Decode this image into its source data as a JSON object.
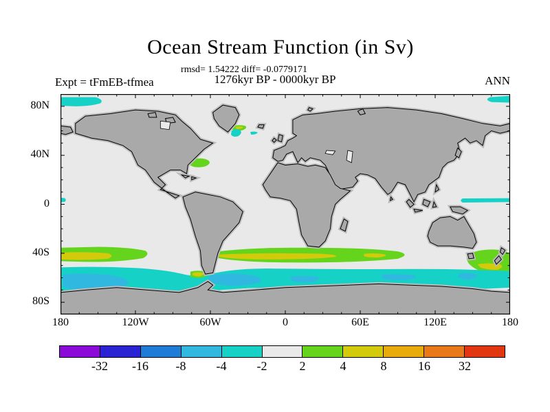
{
  "header": {
    "title": "Ocean Stream Function (in Sv)",
    "stats_line": "rmsd= 1.54222 diff= -0.0779171",
    "period_line": "1276kyr BP - 0000kyr BP",
    "expt_label": "Expt = tFmEB-tfmea",
    "season_label": "ANN"
  },
  "map": {
    "ocean_color": "#e9e9e9",
    "land_color": "#a9a9a9",
    "land_halo_color": "#bcbcbc",
    "coast_color": "#000000"
  },
  "chart_data": {
    "type": "heatmap",
    "title": "Ocean Stream Function (in Sv)",
    "subtitle": "1276kyr BP - 0000kyr BP",
    "experiment": "tFmEB-tfmea",
    "season": "ANN",
    "rmsd": 1.54222,
    "diff": -0.0779171,
    "units": "Sv",
    "projection": "equirectangular",
    "lon_range": [
      -180,
      180
    ],
    "lat_range": [
      -90,
      90
    ],
    "grid": false,
    "x_axis": {
      "minor_step": 15,
      "major_step": 60,
      "ticks": [
        {
          "lon": -180,
          "label": "180"
        },
        {
          "lon": -120,
          "label": "120W"
        },
        {
          "lon": -60,
          "label": "60W"
        },
        {
          "lon": 0,
          "label": "0"
        },
        {
          "lon": 60,
          "label": "60E"
        },
        {
          "lon": 120,
          "label": "120E"
        },
        {
          "lon": 180,
          "label": "180"
        }
      ]
    },
    "y_axis": {
      "minor_step": 10,
      "major_step": 40,
      "ticks": [
        {
          "lat": 80,
          "label": "80N"
        },
        {
          "lat": 40,
          "label": "40N"
        },
        {
          "lat": 0,
          "label": "0"
        },
        {
          "lat": -40,
          "label": "40S"
        },
        {
          "lat": -80,
          "label": "80S"
        }
      ]
    },
    "colorbar": {
      "position": "bottom",
      "levels": [
        "<-32",
        "-32..-16",
        "-16..-8",
        "-8..-4",
        "-4..-2",
        "-2..2",
        "2..4",
        "4..8",
        "8..16",
        "16..32",
        ">32"
      ],
      "colors": [
        "#8b0ad8",
        "#2a23d3",
        "#1f7bd8",
        "#30b8e0",
        "#16d2c6",
        "#e9e9e9",
        "#65d41d",
        "#d3ca0c",
        "#e9aa0c",
        "#e87818",
        "#e1360f"
      ],
      "boundary_labels": [
        "-32",
        "-16",
        "-8",
        "-4",
        "-2",
        "2",
        "4",
        "8",
        "16",
        "32"
      ]
    },
    "anomalies": [
      {
        "region": "Arctic, Pacific sector west",
        "lat": "79N..88N",
        "lon": "180W..147W",
        "level": "-4..-2"
      },
      {
        "region": "Arctic, Pacific sector east edge",
        "lat": "80N..89N",
        "lon": "164E..180E",
        "level": "-4..-2"
      },
      {
        "region": "North Atlantic south of Greenland",
        "lat": "55N..60N",
        "lon": "43W..29W",
        "level": "-4..-2"
      },
      {
        "region": "North Atlantic subpolar patch",
        "lat": "61N..64N",
        "lon": "43W..33W",
        "level": "4..8 core in 2..4"
      },
      {
        "region": "Gulf Stream off US East Coast",
        "lat": "30N..37N",
        "lon": "77W..61W",
        "level": "2..4"
      },
      {
        "region": "Equatorial Pacific at west map edge",
        "lat": "1N..5N",
        "lon": "180W..176W",
        "level": "-4..-2"
      },
      {
        "region": "Equatorial west Pacific",
        "lat": "1N..5N",
        "lon": "141E..180E",
        "level": "-4..-2"
      },
      {
        "region": "South Pacific 40S band (west of South America)",
        "lat": "35S..47S",
        "lon": "180W..110W",
        "level": "2..4 with 4..8 core"
      },
      {
        "region": "South Atlantic - Indian 40S band",
        "lat": "35S..48S",
        "lon": "58W..100E",
        "level": "2..4 with 4..8 cores"
      },
      {
        "region": "Falkland Plateau spot",
        "lat": "56S..60S",
        "lon": "75W..64W",
        "level": "4..8 rimmed by 2..4"
      },
      {
        "region": "New Zealand sector",
        "lat": "34S..60S",
        "lon": "145E..180E",
        "level": "2..4 with 4..8 streak"
      },
      {
        "region": "Circumpolar Southern Ocean band",
        "lat": "51S..73S",
        "lon": "180W..180E",
        "level": "-4..-2"
      },
      {
        "region": "Southern Ocean cores (Pacific, Atlantic, Indian sectors)",
        "lat": "55S..70S",
        "lon": "various",
        "level": "-8..-4"
      }
    ]
  }
}
